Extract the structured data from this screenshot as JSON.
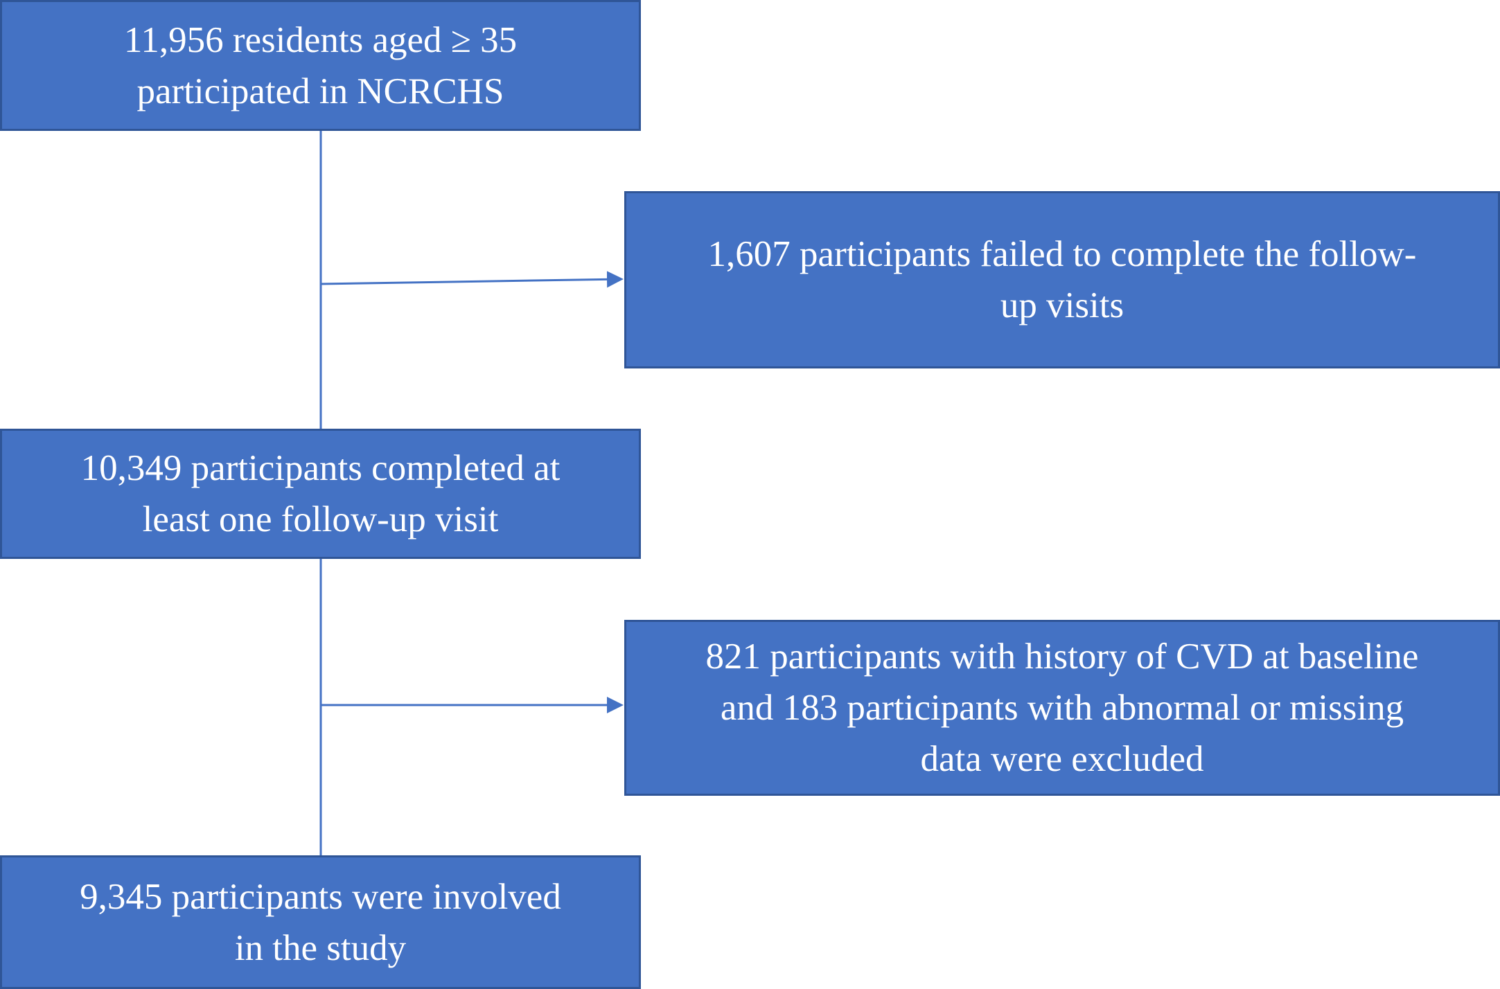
{
  "colors": {
    "box_fill": "#4472C4",
    "box_border": "#2F5597",
    "box_text": "#FFFFFF",
    "connector": "#4472C4",
    "background": "#FFFFFF"
  },
  "boxes": {
    "enrolled": "11,956 residents aged ≥ 35\nparticipated in NCRCHS",
    "lost_to_followup": "1,607 participants failed to complete the follow-\nup visits",
    "followed_up": "10,349 participants completed at\nleast one follow-up visit",
    "excluded": "821 participants with history of CVD at baseline\nand 183 participants with abnormal or missing\ndata were excluded",
    "final_cohort": "9,345 participants were involved\nin the study"
  }
}
